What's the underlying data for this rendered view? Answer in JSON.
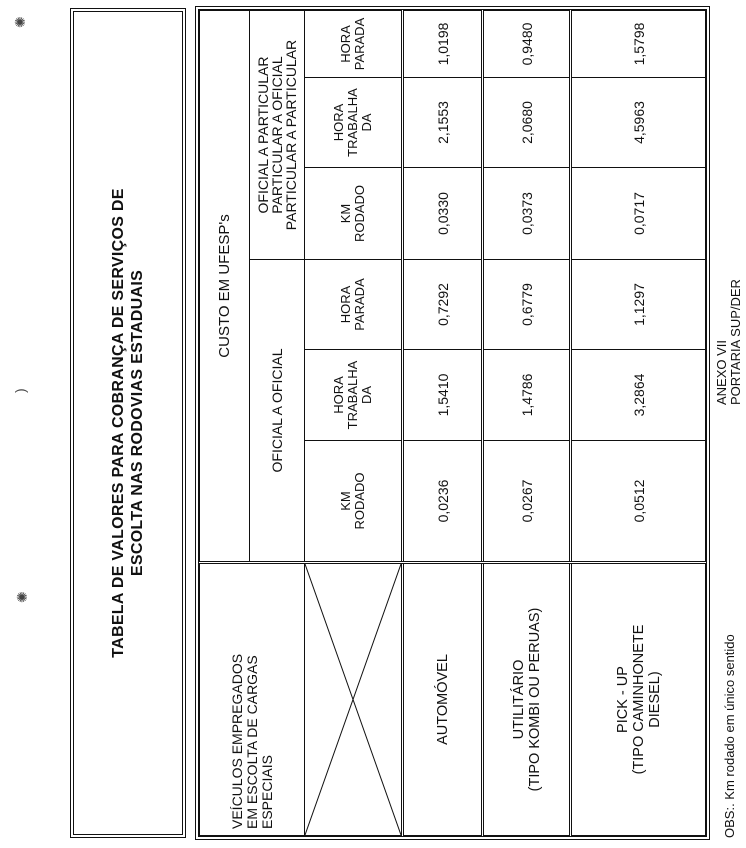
{
  "title": {
    "line1": "TABELA DE VALORES PARA COBRANÇA DE SERVIÇOS DE",
    "line2": "ESCOLTA NAS RODOVIAS ESTADUAIS"
  },
  "table": {
    "vehicle_header": [
      "VEÍCULOS EMPREGADOS",
      "EM ESCOLTA DE CARGAS",
      "ESPECIAIS"
    ],
    "cost_header": "CUSTO EM UFESP's",
    "groups": [
      {
        "label": [
          "OFICIAL A OFICIAL"
        ]
      },
      {
        "label": [
          "OFICIAL A PARTICULAR",
          "PARTICULAR A OFICIAL",
          "PARTICULAR A PARTICULAR"
        ]
      }
    ],
    "subheaders": [
      [
        "KM",
        "RODADO"
      ],
      [
        "HORA",
        "TRABALHA",
        "DA"
      ],
      [
        "HORA",
        "PARADA"
      ],
      [
        "KM",
        "RODADO"
      ],
      [
        "HORA",
        "TRABALHA",
        "DA"
      ],
      [
        "HORA",
        "PARADA"
      ]
    ],
    "rows": [
      {
        "vehicle": [
          "AUTOMÓVEL"
        ],
        "values": [
          "0,0236",
          "1,5410",
          "0,7292",
          "0,0330",
          "2,1553",
          "1,0198"
        ]
      },
      {
        "vehicle": [
          "UTILITÁRIO",
          "(TIPO KOMBI OU PERUAS)"
        ],
        "values": [
          "0,0267",
          "1,4786",
          "0,6779",
          "0,0373",
          "2,0680",
          "0,9480"
        ]
      },
      {
        "vehicle": [
          "PICK - UP",
          "(TIPO CAMINHONETE",
          "DIESEL)"
        ],
        "values": [
          "0,0512",
          "3,2864",
          "1,1297",
          "0,0717",
          "4,5963",
          "1,5798"
        ]
      }
    ]
  },
  "footer": {
    "obs": "OBS:. Km rodado em único sentido",
    "annex": [
      "ANEXO VII",
      "PORTARIA SUP/DER"
    ]
  }
}
